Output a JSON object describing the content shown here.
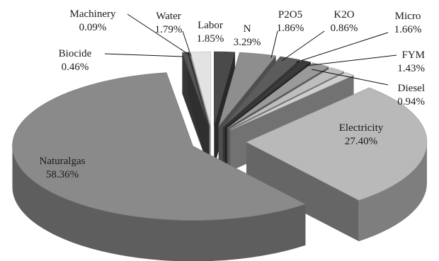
{
  "chart_data": {
    "type": "pie",
    "title": "",
    "slices": [
      {
        "name": "Labor",
        "percent": "1.85%",
        "value": 1.85,
        "color": "#4a4a4a"
      },
      {
        "name": "N",
        "percent": "3.29%",
        "value": 3.29,
        "color": "#8e8e8e"
      },
      {
        "name": "P2O5",
        "percent": "1.86%",
        "value": 1.86,
        "color": "#5c5c5c"
      },
      {
        "name": "K2O",
        "percent": "0.86%",
        "value": 0.86,
        "color": "#3a3a3a"
      },
      {
        "name": "Micro",
        "percent": "1.66%",
        "value": 1.66,
        "color": "#9a9a9a"
      },
      {
        "name": "FYM",
        "percent": "1.43%",
        "value": 1.43,
        "color": "#bdbdbd"
      },
      {
        "name": "Diesel",
        "percent": "0.94%",
        "value": 0.94,
        "color": "#cfcfcf"
      },
      {
        "name": "Electricity",
        "percent": "27.40%",
        "value": 27.4,
        "color": "#b9b9b9"
      },
      {
        "name": "Naturalgas",
        "percent": "58.36%",
        "value": 58.36,
        "color": "#8a8a8a"
      },
      {
        "name": "Biocide",
        "percent": "0.46%",
        "value": 0.46,
        "color": "#555555"
      },
      {
        "name": "Machinery",
        "percent": "0.09%",
        "value": 0.09,
        "color": "#2f2f2f"
      },
      {
        "name": "Water",
        "percent": "1.79%",
        "value": 1.79,
        "color": "#e3e3e3"
      }
    ],
    "legend": "none",
    "labels": "outside-with-leaders",
    "style": "3d-exploded"
  }
}
